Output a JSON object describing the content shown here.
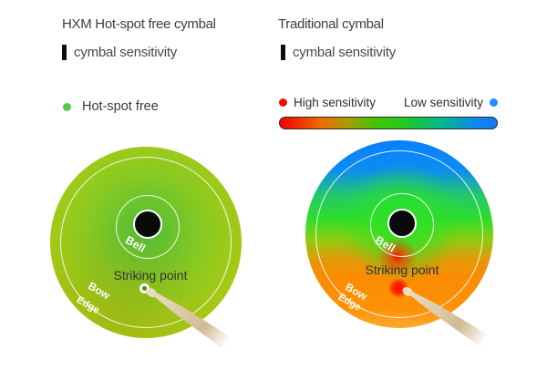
{
  "left": {
    "title": "HXM Hot-spot free cymbal",
    "sensitivity_label": "cymbal sensitivity",
    "legend": {
      "label": "Hot-spot free",
      "dot_color": "#54cc54"
    },
    "cymbal": {
      "bell": "Bell",
      "bow": "Bow",
      "edge": "Edge",
      "striking_point": "Striking point"
    }
  },
  "right": {
    "title": "Traditional cymbal",
    "sensitivity_label": "cymbal sensitivity",
    "legend": {
      "high_label": "High sensitivity",
      "high_dot_color": "#f01000",
      "low_label": "Low sensitivity",
      "low_dot_color": "#1e90ff",
      "gradient_bar_colors": [
        "#f10600",
        "#ee6c00",
        "#ab9c00",
        "#1fcc1d",
        "#00b88e",
        "#1478ef"
      ]
    },
    "cymbal": {
      "bell": "Bell",
      "bow": "Bow",
      "edge": "Edge",
      "striking_point": "Striking point"
    }
  },
  "colors": {
    "left_cymbal_body": "#8cc81e",
    "left_cymbal_rim": "#b8bd0c",
    "right_cymbal_top": "#0a7ffc",
    "right_cymbal_mid": "#2edd2b",
    "right_cymbal_bottom": "#fb8b03",
    "striking_point_hot": "#ff0d00",
    "text_dark": "#3e3e3e"
  }
}
